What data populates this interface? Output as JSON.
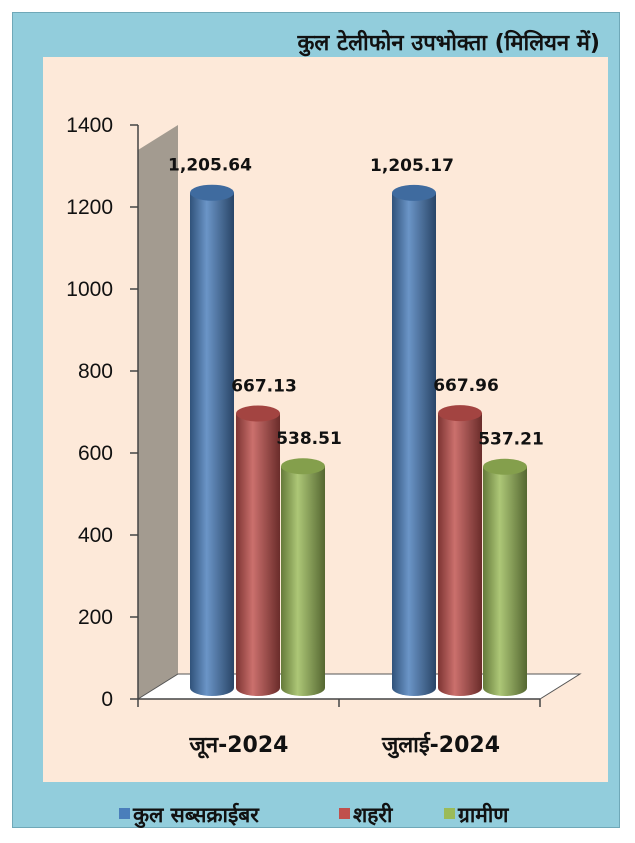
{
  "chart_data": {
    "type": "bar",
    "title": "कुल टेलीफोन उपभोक्ता (मिलियन में)",
    "categories": [
      "जून-2024",
      "जुलाई-2024"
    ],
    "series": [
      {
        "name": "कुल सब्सक्राईबर",
        "values": [
          1205.64,
          1205.17
        ],
        "labels": [
          "1,205.64",
          "1,205.17"
        ],
        "color": "#4a7ebb"
      },
      {
        "name": "शहरी",
        "values": [
          667.13,
          667.96
        ],
        "labels": [
          "667.13",
          "667.96"
        ],
        "color": "#c0504d"
      },
      {
        "name": "ग्रामीण",
        "values": [
          538.51,
          537.21
        ],
        "labels": [
          "538.51",
          "537.21"
        ],
        "color": "#9bbb59"
      }
    ],
    "yticks": [
      0,
      200,
      400,
      600,
      800,
      1000,
      1200,
      1400
    ],
    "ylim": [
      0,
      1400
    ],
    "legend": "bottom",
    "grid": false,
    "background": "#fde9d9",
    "frame_color": "#92cddc"
  }
}
